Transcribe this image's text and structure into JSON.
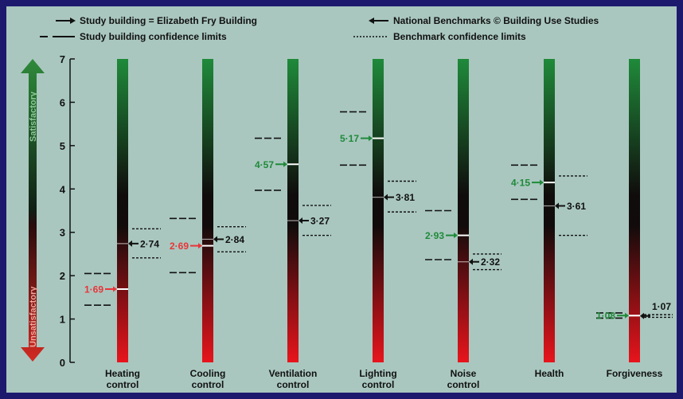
{
  "chart_data": {
    "type": "bar",
    "title": "",
    "xlabel": "",
    "ylabel": "",
    "ylim": [
      0,
      7
    ],
    "yticks": [
      "0",
      "1",
      "2",
      "3",
      "4",
      "5",
      "6",
      "7"
    ],
    "axis_arrow": {
      "top_label": "Satisfactory",
      "bottom_label": "Unsatisfactory"
    },
    "legend": [
      {
        "key": "study",
        "label": "Study building = Elizabeth Fry Building"
      },
      {
        "key": "benchmark",
        "label": "National Benchmarks © Building Use Studies"
      },
      {
        "key": "study_ci",
        "label": "Study building confidence limits"
      },
      {
        "key": "benchmark_ci",
        "label": "Benchmark confidence limits"
      }
    ],
    "categories": [
      {
        "name": [
          "Heating",
          "control"
        ],
        "study": 1.69,
        "study_label": "1·69",
        "study_color": "red",
        "study_ci": [
          1.32,
          2.05
        ],
        "benchmark": 2.74,
        "benchmark_label": "2·74",
        "benchmark_ci": [
          2.41,
          3.08
        ]
      },
      {
        "name": [
          "Cooling",
          "control"
        ],
        "study": 2.69,
        "study_label": "2·69",
        "study_color": "red",
        "study_ci": [
          2.07,
          3.32
        ],
        "benchmark": 2.84,
        "benchmark_label": "2·84",
        "benchmark_ci": [
          2.55,
          3.13
        ]
      },
      {
        "name": [
          "Ventilation",
          "control"
        ],
        "study": 4.57,
        "study_label": "4·57",
        "study_color": "green",
        "study_ci": [
          3.97,
          5.17
        ],
        "benchmark": 3.27,
        "benchmark_label": "3·27",
        "benchmark_ci": [
          2.93,
          3.62
        ]
      },
      {
        "name": [
          "Lighting",
          "control"
        ],
        "study": 5.17,
        "study_label": "5·17",
        "study_color": "green",
        "study_ci": [
          4.55,
          5.78
        ],
        "benchmark": 3.81,
        "benchmark_label": "3·81",
        "benchmark_ci": [
          3.47,
          4.18
        ]
      },
      {
        "name": [
          "Noise",
          "control"
        ],
        "study": 2.93,
        "study_label": "2·93",
        "study_color": "green",
        "study_ci": [
          2.37,
          3.5
        ],
        "benchmark": 2.32,
        "benchmark_label": "2·32",
        "benchmark_ci": [
          2.14,
          2.5
        ]
      },
      {
        "name": [
          "Health",
          ""
        ],
        "study": 4.15,
        "study_label": "4·15",
        "study_color": "green",
        "study_ci": [
          3.76,
          4.55
        ],
        "benchmark": 3.61,
        "benchmark_label": "3·61",
        "benchmark_ci": [
          2.93,
          4.3
        ]
      },
      {
        "name": [
          "Forgiveness",
          ""
        ],
        "study": 1.08,
        "study_label": "1·08",
        "study_color": "green",
        "study_ci": [
          1.02,
          1.14
        ],
        "benchmark": 1.07,
        "benchmark_label": "1·07",
        "benchmark_ci": [
          1.04,
          1.1
        ]
      }
    ],
    "colors": {
      "background": "#a9c7bf",
      "frame": "#1d1a6e",
      "bar_top": "#1f8a3a",
      "bar_mid": "#100c0c",
      "bar_bottom": "#e8141c",
      "label_red": "#e8353a",
      "label_green": "#1f8a3a",
      "ink": "#111111",
      "axis_arrow_top": "#2e8a3a",
      "axis_arrow_bottom": "#d22a22"
    }
  }
}
